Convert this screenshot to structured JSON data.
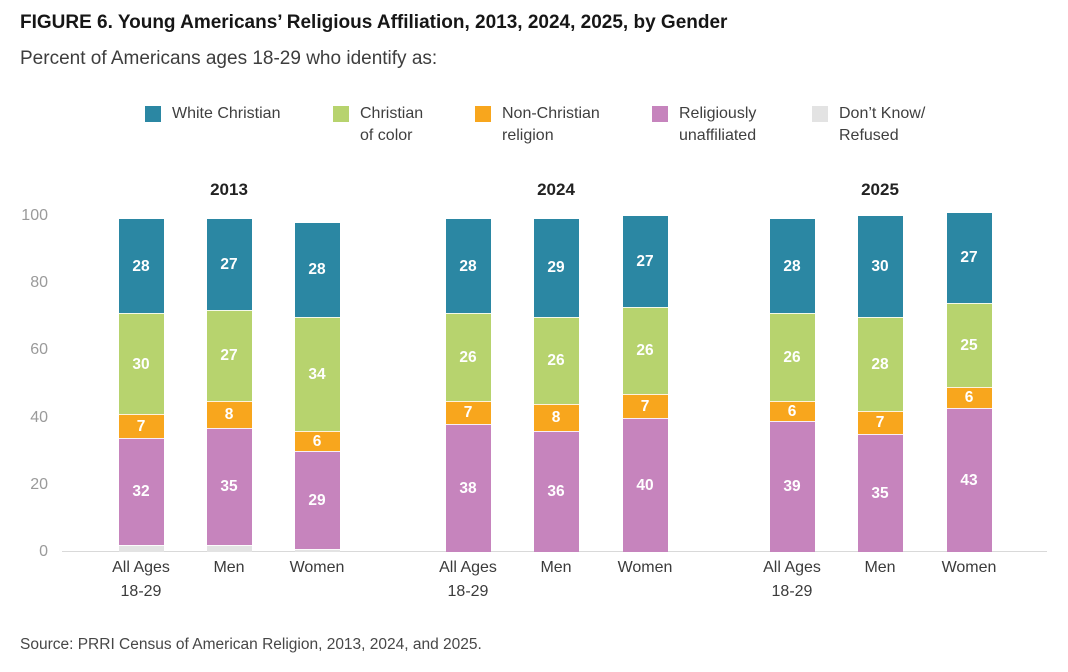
{
  "figure": {
    "title": "FIGURE 6. Young Americans’ Religious Affiliation, 2013, 2024, 2025, by Gender",
    "subtitle": "Percent of Americans ages 18-29 who identify as:",
    "source": "Source: PRRI Census of American Religion, 2013, 2024, and 2025."
  },
  "legend": [
    {
      "key": "white_christian",
      "label": "White Christian",
      "color": "#2b87a3"
    },
    {
      "key": "christian_of_color",
      "label": "Christian\nof color",
      "color": "#b7d36e"
    },
    {
      "key": "non_christian_religion",
      "label": "Non-Christian\nreligion",
      "color": "#f8a61d"
    },
    {
      "key": "religiously_unaffiliated",
      "label": "Religiously\nunaffiliated",
      "color": "#c684bd"
    },
    {
      "key": "dont_know_refused",
      "label": "Don’t Know/\nRefused",
      "color": "#e3e3e3"
    }
  ],
  "chart_data": {
    "type": "bar",
    "stacked": true,
    "title": "FIGURE 6. Young Americans’ Religious Affiliation, 2013, 2024, 2025, by Gender",
    "subtitle": "Percent of Americans ages 18-29 who identify as:",
    "ylabel": "",
    "xlabel": "",
    "ylim": [
      0,
      100
    ],
    "yticks": [
      0,
      20,
      40,
      60,
      80,
      100
    ],
    "grid": false,
    "legend_position": "top",
    "stack_order_bottom_to_top": [
      "dont_know_refused",
      "religiously_unaffiliated",
      "non_christian_religion",
      "christian_of_color",
      "white_christian"
    ],
    "labeled_segments": [
      "religiously_unaffiliated",
      "non_christian_religion",
      "christian_of_color",
      "white_christian"
    ],
    "groups": [
      {
        "year": "2013",
        "bars": [
          {
            "category": "All Ages\n18-29",
            "values": {
              "white_christian": 28,
              "christian_of_color": 30,
              "non_christian_religion": 7,
              "religiously_unaffiliated": 32,
              "dont_know_refused": 2
            }
          },
          {
            "category": "Men",
            "values": {
              "white_christian": 27,
              "christian_of_color": 27,
              "non_christian_religion": 8,
              "religiously_unaffiliated": 35,
              "dont_know_refused": 2
            }
          },
          {
            "category": "Women",
            "values": {
              "white_christian": 28,
              "christian_of_color": 34,
              "non_christian_religion": 6,
              "religiously_unaffiliated": 29,
              "dont_know_refused": 1
            }
          }
        ]
      },
      {
        "year": "2024",
        "bars": [
          {
            "category": "All Ages\n18-29",
            "values": {
              "white_christian": 28,
              "christian_of_color": 26,
              "non_christian_religion": 7,
              "religiously_unaffiliated": 38,
              "dont_know_refused": 0
            }
          },
          {
            "category": "Men",
            "values": {
              "white_christian": 29,
              "christian_of_color": 26,
              "non_christian_religion": 8,
              "religiously_unaffiliated": 36,
              "dont_know_refused": 0
            }
          },
          {
            "category": "Women",
            "values": {
              "white_christian": 27,
              "christian_of_color": 26,
              "non_christian_religion": 7,
              "religiously_unaffiliated": 40,
              "dont_know_refused": 0
            }
          }
        ]
      },
      {
        "year": "2025",
        "bars": [
          {
            "category": "All Ages\n18-29",
            "values": {
              "white_christian": 28,
              "christian_of_color": 26,
              "non_christian_religion": 6,
              "religiously_unaffiliated": 39,
              "dont_know_refused": 0
            }
          },
          {
            "category": "Men",
            "values": {
              "white_christian": 30,
              "christian_of_color": 28,
              "non_christian_religion": 7,
              "religiously_unaffiliated": 35,
              "dont_know_refused": 0
            }
          },
          {
            "category": "Women",
            "values": {
              "white_christian": 27,
              "christian_of_color": 25,
              "non_christian_religion": 6,
              "religiously_unaffiliated": 43,
              "dont_know_refused": 0
            }
          }
        ]
      }
    ]
  }
}
